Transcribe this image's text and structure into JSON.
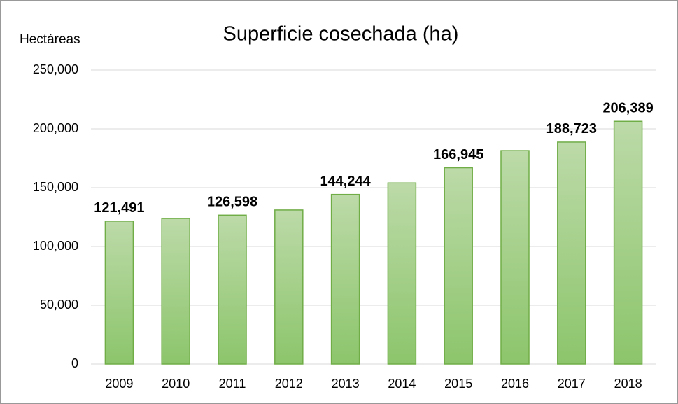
{
  "chart_data": {
    "type": "bar",
    "title": "Superficie cosechada (ha)",
    "y_label": "Hectáreas",
    "categories": [
      "2009",
      "2010",
      "2011",
      "2012",
      "2013",
      "2014",
      "2015",
      "2016",
      "2017",
      "2018"
    ],
    "values": [
      121491,
      123800,
      126598,
      131000,
      144244,
      154000,
      166945,
      181500,
      188723,
      206389
    ],
    "value_labels": [
      "121,491",
      null,
      "126,598",
      null,
      "144,244",
      null,
      "166,945",
      null,
      "188,723",
      "206,389"
    ],
    "color": "#a9d18e",
    "ylim": [
      0,
      250000
    ],
    "yticks": [
      0,
      {
        "value": 50000,
        "label": "50,000"
      },
      {
        "value": 100000,
        "label": "100,000"
      },
      {
        "value": 150000,
        "label": "150,000"
      },
      {
        "value": 200000,
        "label": "200,000"
      },
      {
        "value": 250000,
        "label": "250,000"
      }
    ],
    "grid": true
  }
}
